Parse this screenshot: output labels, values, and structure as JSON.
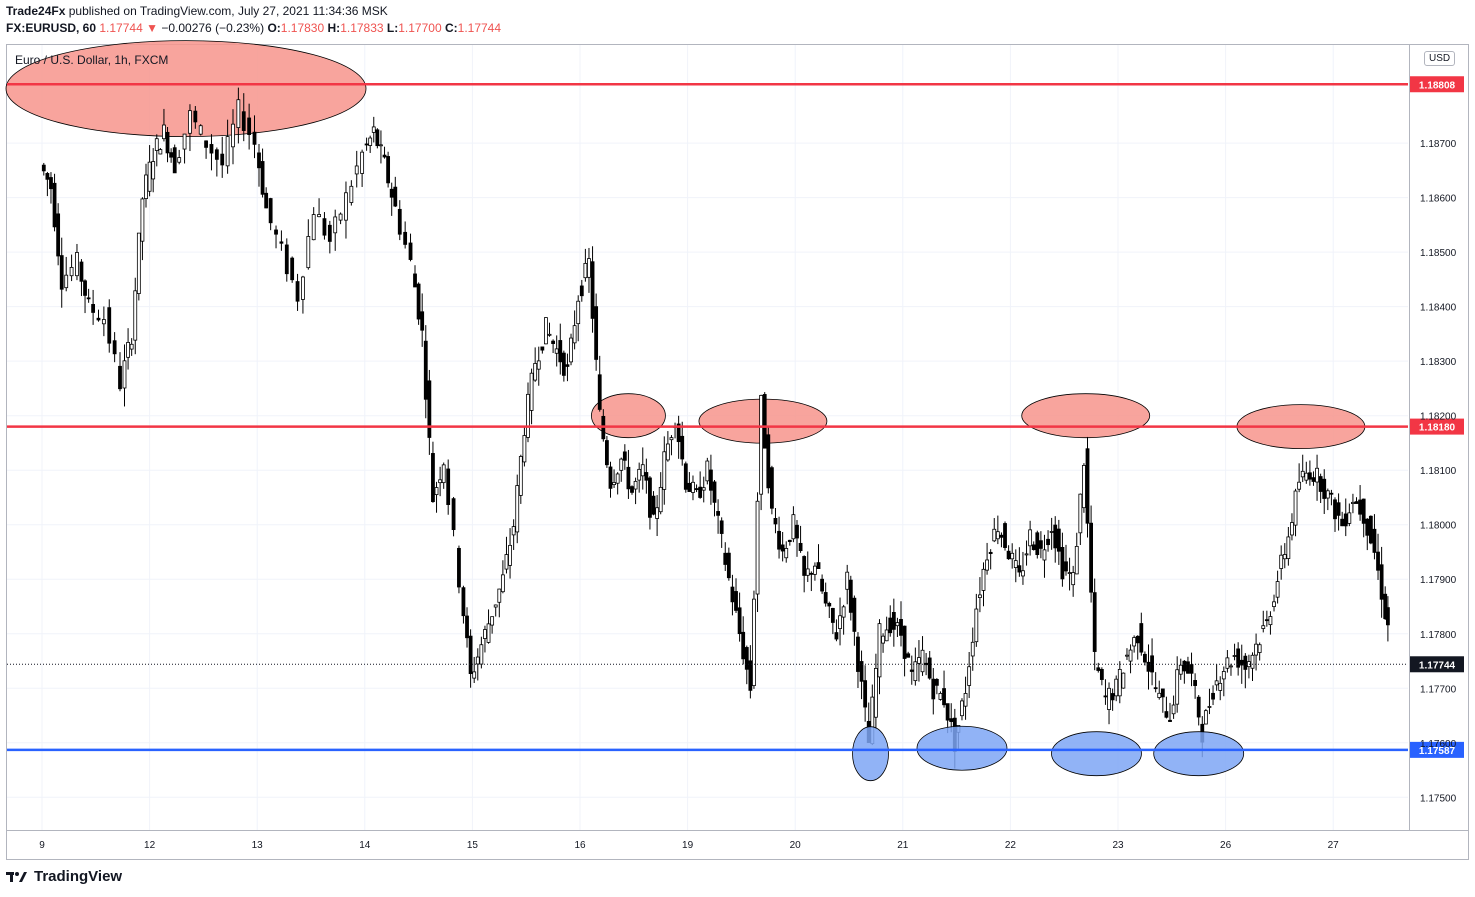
{
  "header": {
    "publisher": "Trade24Fx",
    "published_text": "published on TradingView.com, July 27, 2021 11:34:36 MSK",
    "symbol": "FX:EURUSD, 60",
    "last": "1.17744",
    "change_arrow": "▼",
    "change": "−0.00276 (−0.23%)",
    "o_label": "O:",
    "o_val": "1.17830",
    "h_label": "H:",
    "h_val": "1.17833",
    "l_label": "L:",
    "l_val": "1.17700",
    "c_label": "C:",
    "c_val": "1.17744"
  },
  "currency_badge": "USD",
  "footer": {
    "logo_text": "TradingView"
  },
  "colors": {
    "resistance": "#f23645",
    "support": "#2962ff",
    "red_zone_fill": "#f7948c",
    "blue_zone_fill": "#7ea6f5",
    "candle": "#000000",
    "grid": "#f0f3fa"
  },
  "chart_data": {
    "type": "candlestick",
    "title": "Euro / U.S. Dollar, 1h, FXCM",
    "x_ticks": [
      "9",
      "12",
      "13",
      "14",
      "15",
      "16",
      "19",
      "20",
      "21",
      "22",
      "23",
      "26",
      "27"
    ],
    "y_ticks": [
      "1.18700",
      "1.18600",
      "1.18500",
      "1.18400",
      "1.18300",
      "1.18200",
      "1.18100",
      "1.18000",
      "1.17900",
      "1.17800",
      "1.17700",
      "1.17600",
      "1.17500"
    ],
    "ylim": [
      1.1744,
      1.1888
    ],
    "current_price": 1.17744,
    "current_price_label": "1.17744",
    "levels": [
      {
        "name": "resistance-high",
        "value": 1.18808,
        "label": "1.18808",
        "color": "#f23645"
      },
      {
        "name": "resistance-mid",
        "value": 1.1818,
        "label": "1.18180",
        "color": "#f23645"
      },
      {
        "name": "support",
        "value": 1.17587,
        "label": "1.17587",
        "color": "#2962ff"
      }
    ],
    "red_zones": [
      {
        "day_index": 1.0,
        "price": 1.188
      },
      {
        "day_index": 5.45,
        "price": 1.182
      },
      {
        "day_index": 6.7,
        "price": 1.1819
      },
      {
        "day_index": 9.7,
        "price": 1.182
      },
      {
        "day_index": 11.7,
        "price": 1.1818
      }
    ],
    "blue_zones": [
      {
        "day_index": 7.7,
        "price": 1.1758
      },
      {
        "day_index": 8.55,
        "price": 1.1759
      },
      {
        "day_index": 9.8,
        "price": 1.1758
      },
      {
        "day_index": 10.75,
        "price": 1.1758
      }
    ],
    "price_path": [
      [
        0.0,
        1.1866
      ],
      [
        0.1,
        1.1862
      ],
      [
        0.2,
        1.1845
      ],
      [
        0.35,
        1.1848
      ],
      [
        0.45,
        1.184
      ],
      [
        0.6,
        1.1838
      ],
      [
        0.75,
        1.1826
      ],
      [
        0.85,
        1.1835
      ],
      [
        0.95,
        1.186
      ],
      [
        1.05,
        1.1868
      ],
      [
        1.15,
        1.1872
      ],
      [
        1.25,
        1.1866
      ],
      [
        1.4,
        1.1875
      ],
      [
        1.55,
        1.187
      ],
      [
        1.7,
        1.1866
      ],
      [
        1.85,
        1.1876
      ],
      [
        2.0,
        1.187
      ],
      [
        2.1,
        1.1858
      ],
      [
        2.25,
        1.185
      ],
      [
        2.4,
        1.1842
      ],
      [
        2.55,
        1.1858
      ],
      [
        2.7,
        1.1852
      ],
      [
        2.85,
        1.186
      ],
      [
        3.0,
        1.1868
      ],
      [
        3.1,
        1.1872
      ],
      [
        3.2,
        1.1866
      ],
      [
        3.3,
        1.1858
      ],
      [
        3.45,
        1.1848
      ],
      [
        3.55,
        1.1835
      ],
      [
        3.65,
        1.1805
      ],
      [
        3.75,
        1.1812
      ],
      [
        3.9,
        1.179
      ],
      [
        4.0,
        1.1772
      ],
      [
        4.1,
        1.1778
      ],
      [
        4.2,
        1.1784
      ],
      [
        4.3,
        1.179
      ],
      [
        4.4,
        1.18
      ],
      [
        4.5,
        1.1818
      ],
      [
        4.6,
        1.183
      ],
      [
        4.7,
        1.1836
      ],
      [
        4.8,
        1.1832
      ],
      [
        4.9,
        1.1828
      ],
      [
        5.0,
        1.1842
      ],
      [
        5.1,
        1.1848
      ],
      [
        5.2,
        1.182
      ],
      [
        5.3,
        1.1808
      ],
      [
        5.4,
        1.1812
      ],
      [
        5.5,
        1.1806
      ],
      [
        5.6,
        1.181
      ],
      [
        5.7,
        1.18
      ],
      [
        5.8,
        1.1812
      ],
      [
        5.9,
        1.182
      ],
      [
        6.0,
        1.1808
      ],
      [
        6.1,
        1.1805
      ],
      [
        6.2,
        1.181
      ],
      [
        6.3,
        1.18
      ],
      [
        6.4,
        1.179
      ],
      [
        6.5,
        1.178
      ],
      [
        6.6,
        1.177
      ],
      [
        6.7,
        1.1822
      ],
      [
        6.8,
        1.1802
      ],
      [
        6.9,
        1.1795
      ],
      [
        7.0,
        1.18
      ],
      [
        7.1,
        1.179
      ],
      [
        7.2,
        1.1793
      ],
      [
        7.3,
        1.1785
      ],
      [
        7.4,
        1.178
      ],
      [
        7.5,
        1.179
      ],
      [
        7.6,
        1.1775
      ],
      [
        7.7,
        1.176
      ],
      [
        7.8,
        1.178
      ],
      [
        7.9,
        1.1782
      ],
      [
        8.0,
        1.178
      ],
      [
        8.1,
        1.1772
      ],
      [
        8.2,
        1.1776
      ],
      [
        8.3,
        1.177
      ],
      [
        8.4,
        1.1768
      ],
      [
        8.5,
        1.176
      ],
      [
        8.6,
        1.177
      ],
      [
        8.7,
        1.1785
      ],
      [
        8.8,
        1.1795
      ],
      [
        8.9,
        1.18
      ],
      [
        9.0,
        1.1795
      ],
      [
        9.1,
        1.179
      ],
      [
        9.2,
        1.1798
      ],
      [
        9.3,
        1.1795
      ],
      [
        9.4,
        1.18
      ],
      [
        9.5,
        1.1792
      ],
      [
        9.6,
        1.179
      ],
      [
        9.7,
        1.1812
      ],
      [
        9.8,
        1.1775
      ],
      [
        9.9,
        1.1768
      ],
      [
        10.0,
        1.177
      ],
      [
        10.1,
        1.1776
      ],
      [
        10.2,
        1.178
      ],
      [
        10.3,
        1.1774
      ],
      [
        10.4,
        1.1768
      ],
      [
        10.5,
        1.1765
      ],
      [
        10.6,
        1.1775
      ],
      [
        10.7,
        1.1772
      ],
      [
        10.8,
        1.1762
      ],
      [
        10.9,
        1.177
      ],
      [
        11.0,
        1.1774
      ],
      [
        11.1,
        1.1776
      ],
      [
        11.2,
        1.1774
      ],
      [
        11.3,
        1.1778
      ],
      [
        11.4,
        1.1782
      ],
      [
        11.5,
        1.179
      ],
      [
        11.6,
        1.1798
      ],
      [
        11.7,
        1.1808
      ],
      [
        11.8,
        1.181
      ],
      [
        11.9,
        1.1808
      ],
      [
        12.0,
        1.1804
      ],
      [
        12.1,
        1.18
      ],
      [
        12.2,
        1.1805
      ],
      [
        12.3,
        1.1802
      ],
      [
        12.4,
        1.1795
      ],
      [
        12.5,
        1.1784
      ],
      [
        12.55,
        1.1776
      ]
    ]
  }
}
